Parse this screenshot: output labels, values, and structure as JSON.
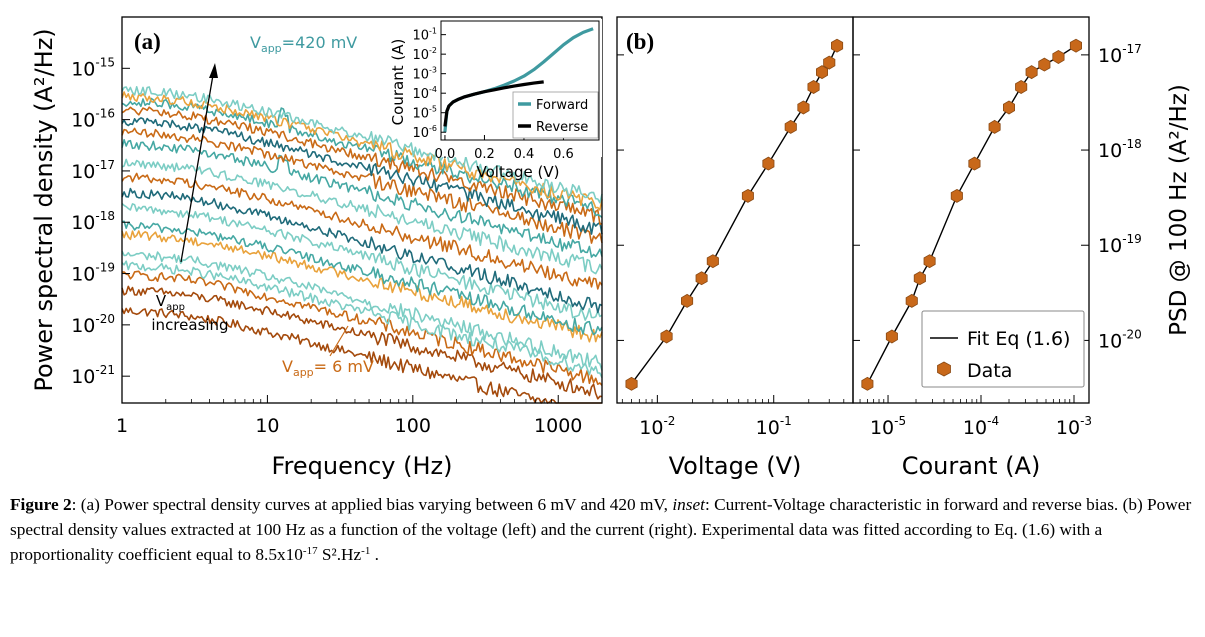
{
  "colors": {
    "teal_light": "#7ccdc4",
    "teal": "#45a8a3",
    "teal_dark": "#1f6b7a",
    "orange": "#c96a16",
    "orange_light": "#e9a23b",
    "brown": "#a44a0c",
    "marker": "#c8681a",
    "marker_edge": "#8a4a14",
    "forward": "#3f9aa0",
    "reverse": "#000000"
  },
  "chart_data": [
    {
      "id": "a",
      "panel_label": "(a)",
      "type": "line",
      "xlabel": "Frequency (Hz)",
      "ylabel": "Power spectral density (A²/Hz)",
      "xscale": "log",
      "yscale": "log",
      "xlim": [
        1,
        2000
      ],
      "ylim": [
        3e-22,
        1e-14
      ],
      "xticks": [
        "1",
        "10",
        "100",
        "1000"
      ],
      "yticks": [
        {
          "base": "10",
          "exp": "-15"
        },
        {
          "base": "10",
          "exp": "-16"
        },
        {
          "base": "10",
          "exp": "-17"
        },
        {
          "base": "10",
          "exp": "-18"
        },
        {
          "base": "10",
          "exp": "-19"
        },
        {
          "base": "10",
          "exp": "-20"
        },
        {
          "base": "10",
          "exp": "-21"
        }
      ],
      "annotations": {
        "top_prefix": "V",
        "top_sub": "app",
        "top_value": "=420 mV",
        "bottom_prefix": "V",
        "bottom_sub": "app",
        "bottom_value": "= 6 mV",
        "arrow_prefix": "V",
        "arrow_sub": "app",
        "arrow_text": "increasing"
      },
      "series": [
        {
          "color_key": "brown",
          "low_freq_level": 2e-20,
          "slope": 0.72
        },
        {
          "color_key": "brown",
          "low_freq_level": 5e-20,
          "slope": 0.7
        },
        {
          "color_key": "orange",
          "low_freq_level": 1e-19,
          "slope": 0.72
        },
        {
          "color_key": "teal_light",
          "low_freq_level": 1.5e-19,
          "slope": 0.72
        },
        {
          "color_key": "teal_light",
          "low_freq_level": 2.5e-19,
          "slope": 0.74
        },
        {
          "color_key": "orange_light",
          "low_freq_level": 6e-19,
          "slope": 0.7
        },
        {
          "color_key": "teal",
          "low_freq_level": 9e-19,
          "slope": 0.72
        },
        {
          "color_key": "teal_light",
          "low_freq_level": 2e-18,
          "slope": 0.75
        },
        {
          "color_key": "teal_dark",
          "low_freq_level": 4e-18,
          "slope": 0.78
        },
        {
          "color_key": "orange",
          "low_freq_level": 8e-18,
          "slope": 0.74
        },
        {
          "color_key": "teal_light",
          "low_freq_level": 1.5e-17,
          "slope": 0.72
        },
        {
          "color_key": "teal",
          "low_freq_level": 3.5e-17,
          "slope": 0.75
        },
        {
          "color_key": "orange",
          "low_freq_level": 6e-17,
          "slope": 0.73
        },
        {
          "color_key": "teal_dark",
          "low_freq_level": 1e-16,
          "slope": 0.74
        },
        {
          "color_key": "orange",
          "low_freq_level": 1.6e-16,
          "slope": 0.73
        },
        {
          "color_key": "teal",
          "low_freq_level": 2.4e-16,
          "slope": 0.74
        },
        {
          "color_key": "orange_light",
          "low_freq_level": 3e-16,
          "slope": 0.74
        },
        {
          "color_key": "teal_light",
          "low_freq_level": 4e-16,
          "slope": 0.74
        }
      ]
    },
    {
      "id": "inset",
      "type": "line",
      "xlabel": "Voltage (V)",
      "ylabel": "Courant (A)",
      "yscale": "log",
      "xlim": [
        -0.02,
        0.78
      ],
      "ylim": [
        4e-07,
        0.5
      ],
      "xticks": [
        "0.0",
        "0.2",
        "0.4",
        "0.6"
      ],
      "xtick_values": [
        0.0,
        0.2,
        0.4,
        0.6
      ],
      "yticks": [
        {
          "base": "10",
          "exp": "-1"
        },
        {
          "base": "10",
          "exp": "-2"
        },
        {
          "base": "10",
          "exp": "-3"
        },
        {
          "base": "10",
          "exp": "-4"
        },
        {
          "base": "10",
          "exp": "-5"
        },
        {
          "base": "10",
          "exp": "-6"
        }
      ],
      "legend": [
        "Forward",
        "Reverse"
      ],
      "series": [
        {
          "name": "Forward",
          "color_key": "forward",
          "x": [
            0.0,
            0.01,
            0.02,
            0.04,
            0.07,
            0.1,
            0.15,
            0.2,
            0.25,
            0.3,
            0.35,
            0.4,
            0.45,
            0.5,
            0.55,
            0.6,
            0.65,
            0.7,
            0.75
          ],
          "y": [
            1e-06,
            1.2e-05,
            2.2e-05,
            3.5e-05,
            5e-05,
            6.5e-05,
            9e-05,
            0.00012,
            0.00017,
            0.00026,
            0.00042,
            0.00075,
            0.0016,
            0.004,
            0.011,
            0.03,
            0.07,
            0.13,
            0.2
          ]
        },
        {
          "name": "Reverse",
          "color_key": "reverse",
          "x": [
            0.0,
            0.01,
            0.02,
            0.04,
            0.07,
            0.1,
            0.15,
            0.2,
            0.25,
            0.3,
            0.35,
            0.4,
            0.45,
            0.5
          ],
          "y": [
            2e-06,
            1.2e-05,
            2.2e-05,
            3.5e-05,
            5e-05,
            6.5e-05,
            9e-05,
            0.00012,
            0.00015,
            0.00019,
            0.00023,
            0.00028,
            0.00033,
            0.00038
          ]
        }
      ]
    },
    {
      "id": "b_left",
      "panel_label": "(b)",
      "type": "scatter",
      "xlabel": "Voltage (V)",
      "xscale": "log",
      "yscale": "log",
      "xlim": [
        0.0045,
        0.48
      ],
      "ylim": [
        2.2e-21,
        2.5e-17
      ],
      "xticks": [
        {
          "base": "10",
          "exp": "-2",
          "value": 0.01
        },
        {
          "base": "10",
          "exp": "-1",
          "value": 0.1
        }
      ],
      "x": [
        0.006,
        0.012,
        0.018,
        0.024,
        0.03,
        0.06,
        0.09,
        0.14,
        0.18,
        0.22,
        0.26,
        0.3,
        0.35
      ],
      "y": [
        3.5e-21,
        1.1e-20,
        2.6e-20,
        4.5e-20,
        6.8e-20,
        3.3e-19,
        7.2e-19,
        1.75e-18,
        2.8e-18,
        4.6e-18,
        6.6e-18,
        8.3e-18,
        1.25e-17
      ],
      "fit": {
        "type": "line"
      }
    },
    {
      "id": "b_right",
      "type": "scatter",
      "xlabel": "Courant (A)",
      "ylabel": "PSD @ 100 Hz (A²/Hz)",
      "xscale": "log",
      "yscale": "log",
      "xlim": [
        4.2e-06,
        0.00145
      ],
      "ylim": [
        2.2e-21,
        2.5e-17
      ],
      "xticks": [
        {
          "base": "10",
          "exp": "-5",
          "value": 1e-05
        },
        {
          "base": "10",
          "exp": "-4",
          "value": 0.0001
        },
        {
          "base": "10",
          "exp": "-3",
          "value": 0.001
        }
      ],
      "yticks": [
        {
          "base": "10",
          "exp": "-17",
          "value": 1e-17
        },
        {
          "base": "10",
          "exp": "-18",
          "value": 1e-18
        },
        {
          "base": "10",
          "exp": "-19",
          "value": 1e-19
        },
        {
          "base": "10",
          "exp": "-20",
          "value": 1e-20
        }
      ],
      "x": [
        6e-06,
        1.1e-05,
        1.8e-05,
        2.2e-05,
        2.8e-05,
        5.5e-05,
        8.5e-05,
        0.00014,
        0.0002,
        0.00027,
        0.00035,
        0.00048,
        0.00068,
        0.00105
      ],
      "y": [
        3.5e-21,
        1.1e-20,
        2.6e-20,
        4.5e-20,
        6.8e-20,
        3.3e-19,
        7.2e-19,
        1.75e-18,
        2.8e-18,
        4.6e-18,
        6.6e-18,
        7.9e-18,
        9.5e-18,
        1.25e-17
      ],
      "legend": [
        "Fit Eq (1.6)",
        "Data"
      ]
    }
  ],
  "caption": {
    "fig_label": "Figure 2",
    "part1": ": (a) Power spectral density curves at applied bias varying between 6 mV and 420 mV, ",
    "inset_word": "inset",
    "part2": ": Current-Voltage characteristic in forward and reverse bias. (b) Power spectral density values extracted at 100 Hz as a function of the voltage (left) and the current (right). Experimental data was fitted according to Eq. (1.6) with a proportionality coefficient equal to 8.5x10",
    "exp1": "-17",
    "part3": " S².Hz",
    "exp2": "-1",
    "part4": " ."
  }
}
